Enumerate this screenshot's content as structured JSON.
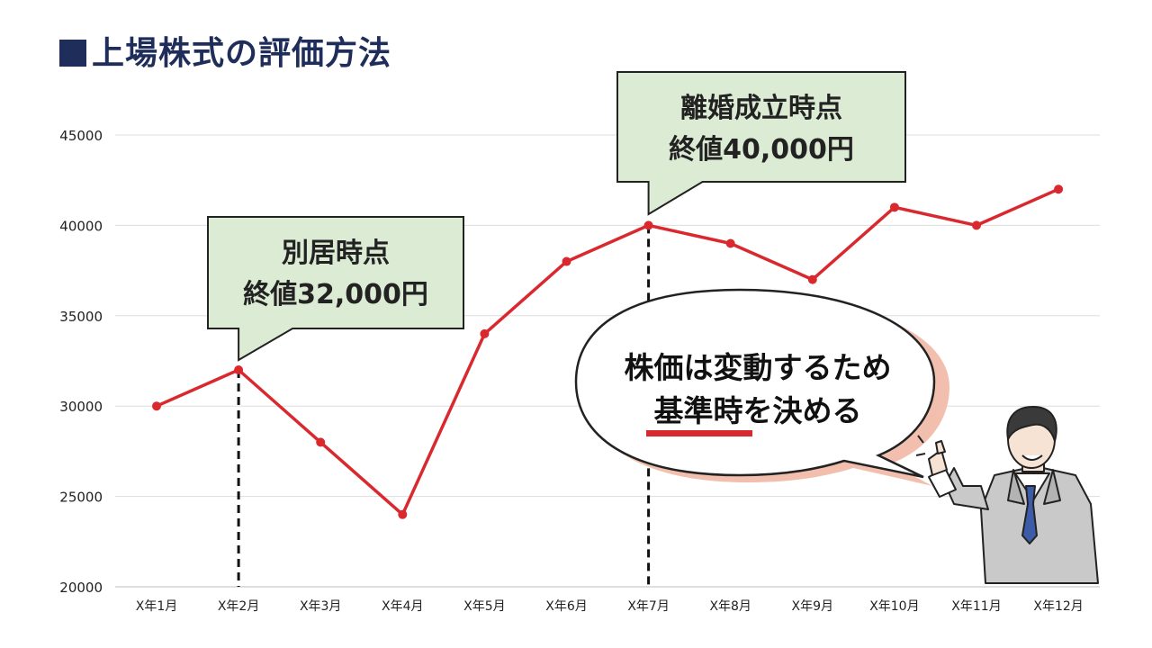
{
  "page": {
    "title": "上場株式の評価方法"
  },
  "colors": {
    "title": "#1f2d5a",
    "line": "#d9292f",
    "callout_fill": "#dcebd3",
    "underline": "#d9292f",
    "bubble_shadow": "#f2bfae"
  },
  "chart_data": {
    "type": "line",
    "categories": [
      "X年1月",
      "X年2月",
      "X年3月",
      "X年4月",
      "X年5月",
      "X年6月",
      "X年7月",
      "X年8月",
      "X年9月",
      "X年10月",
      "X年11月",
      "X年12月"
    ],
    "series": [
      {
        "values": [
          30000,
          32000,
          28000,
          24000,
          34000,
          38000,
          40000,
          39000,
          37000,
          41000,
          40000,
          42000
        ]
      }
    ],
    "ylim": [
      20000,
      45000
    ],
    "yticks": [
      20000,
      25000,
      30000,
      35000,
      40000,
      45000
    ],
    "grid": true,
    "markers": [
      {
        "category": "X年2月",
        "lines": [
          "別居時点",
          "終値32,000円"
        ]
      },
      {
        "category": "X年7月",
        "lines": [
          "離婚成立時点",
          "終値40,000円"
        ]
      }
    ]
  },
  "speech_bubble": {
    "line1": "株価は変動するため",
    "line2_emphasis": "基準時",
    "line2_rest": "を決める"
  },
  "illustration": {
    "icon": "businessman-pointing-icon"
  }
}
